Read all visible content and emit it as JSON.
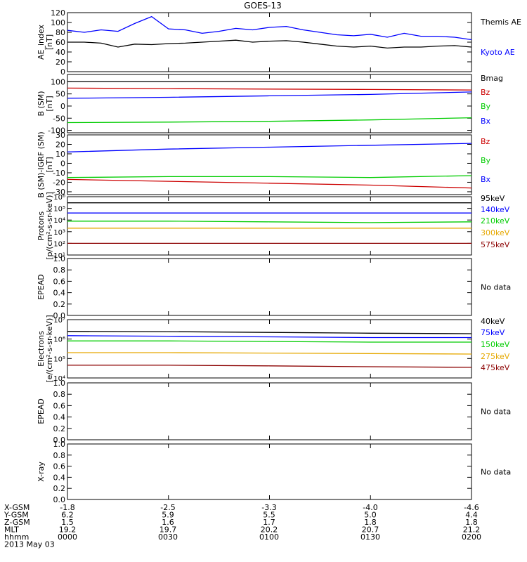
{
  "header": {
    "title": "GOES-13"
  },
  "colors": {
    "blue": "#0000ff",
    "black": "#000000",
    "green": "#00cc00",
    "red": "#cc0000",
    "orange": "#e6a800",
    "darkred": "#8b0000"
  },
  "footer": {
    "rows": [
      {
        "label": "X-GSM",
        "values": [
          "-1.8",
          "-2.5",
          "-3.3",
          "-4.0",
          "-4.6"
        ]
      },
      {
        "label": "Y-GSM",
        "values": [
          "6.2",
          "5.9",
          "5.5",
          "5.0",
          "4.4"
        ]
      },
      {
        "label": "Z-GSM",
        "values": [
          "1.5",
          "1.6",
          "1.7",
          "1.8",
          "1.8"
        ]
      },
      {
        "label": "MLT",
        "values": [
          "19.2",
          "19.7",
          "20.2",
          "20.7",
          "21.2"
        ]
      },
      {
        "label": "hhmm",
        "values": [
          "0000",
          "0030",
          "0100",
          "0130",
          "0200"
        ]
      }
    ],
    "date": "2013 May 03"
  },
  "chart_data": [
    {
      "type": "line",
      "title": "GOES-13",
      "ylabel": "AE_index [nT]",
      "ylim": [
        0,
        120
      ],
      "yticks": [
        0,
        20,
        40,
        60,
        80,
        100,
        120
      ],
      "x": [
        0,
        5,
        10,
        15,
        20,
        25,
        30,
        35,
        40,
        45,
        50,
        55,
        60,
        65,
        70,
        75,
        80,
        85,
        90,
        95,
        100,
        105,
        110,
        115,
        120
      ],
      "series": [
        {
          "name": "Kyoto AE",
          "color": "#0000ff",
          "values": [
            84,
            80,
            85,
            82,
            98,
            112,
            87,
            85,
            78,
            82,
            88,
            85,
            90,
            92,
            85,
            80,
            75,
            73,
            76,
            70,
            78,
            72,
            72,
            70,
            65
          ]
        },
        {
          "name": "Themis AE",
          "color": "#000000",
          "values": [
            60,
            60,
            58,
            50,
            56,
            55,
            57,
            58,
            60,
            62,
            64,
            60,
            62,
            63,
            60,
            56,
            52,
            50,
            52,
            48,
            50,
            50,
            52,
            53,
            50
          ]
        }
      ]
    },
    {
      "type": "line",
      "ylabel": "B (SM) [nT]",
      "ylim": [
        -110,
        130
      ],
      "yticks": [
        -100,
        -50,
        0,
        50,
        100
      ],
      "x": [
        0,
        30,
        60,
        90,
        120
      ],
      "series": [
        {
          "name": "Bx",
          "color": "#0000ff",
          "values": [
            32,
            36,
            42,
            48,
            58
          ]
        },
        {
          "name": "By",
          "color": "#00cc00",
          "values": [
            -68,
            -66,
            -63,
            -57,
            -48
          ]
        },
        {
          "name": "Bz",
          "color": "#cc0000",
          "values": [
            74,
            72,
            70,
            68,
            66
          ]
        },
        {
          "name": "Bmag",
          "color": "#000000",
          "values": [
            100,
            100,
            101,
            100,
            100
          ]
        }
      ]
    },
    {
      "type": "line",
      "ylabel": "B (SM)-IGRF (SM) [nT]",
      "ylim": [
        -33,
        30
      ],
      "yticks": [
        -30,
        -20,
        -10,
        0,
        10,
        20,
        30
      ],
      "x": [
        0,
        30,
        60,
        90,
        120
      ],
      "series": [
        {
          "name": "Bx",
          "color": "#0000ff",
          "values": [
            12,
            15,
            17,
            19,
            21
          ]
        },
        {
          "name": "By",
          "color": "#00cc00",
          "values": [
            -15,
            -14,
            -14,
            -15,
            -13
          ]
        },
        {
          "name": "Bz",
          "color": "#cc0000",
          "values": [
            -17,
            -19,
            -21,
            -23,
            -26
          ]
        }
      ]
    },
    {
      "type": "line",
      "ylabel": "Protons [p/(cm²-s-sr-keV)]",
      "yscale": "log",
      "ylim": [
        10,
        1000000
      ],
      "ytick_labels": [
        "10¹",
        "10²",
        "10³",
        "10⁴",
        "10⁵",
        "10⁶"
      ],
      "x": [
        0,
        30,
        60,
        90,
        120
      ],
      "series": [
        {
          "name": "575keV",
          "color": "#8b0000",
          "values": [
            100,
            100,
            100,
            100,
            100
          ]
        },
        {
          "name": "300keV",
          "color": "#e6a800",
          "values": [
            2000,
            2000,
            2000,
            2000,
            2000
          ]
        },
        {
          "name": "210keV",
          "color": "#00cc00",
          "values": [
            8000,
            8000,
            7000,
            6000,
            7000
          ]
        },
        {
          "name": "140keV",
          "color": "#0000ff",
          "values": [
            40000,
            40000,
            40000,
            40000,
            40000
          ]
        },
        {
          "name": "95keV",
          "color": "#000000",
          "values": [
            300000,
            300000,
            300000,
            300000,
            300000
          ]
        }
      ]
    },
    {
      "type": "line",
      "ylabel": "EPEAD",
      "ylim": [
        0,
        1
      ],
      "ytick_labels": [
        "0.0",
        "0.2",
        "0.4",
        "0.6",
        "0.8",
        "1.0"
      ],
      "series": [],
      "annotation": "No data"
    },
    {
      "type": "line",
      "ylabel": "Electrons [e/(cm²-s-sr-keV)]",
      "yscale": "log",
      "ylim": [
        10000,
        10000000
      ],
      "ytick_labels": [
        "10⁴",
        "10⁵",
        "10⁶",
        "10⁷"
      ],
      "x": [
        0,
        30,
        60,
        90,
        120
      ],
      "series": [
        {
          "name": "475keV",
          "color": "#8b0000",
          "values": [
            45000,
            45000,
            42000,
            38000,
            35000
          ]
        },
        {
          "name": "275keV",
          "color": "#e6a800",
          "values": [
            200000,
            200000,
            190000,
            180000,
            170000
          ]
        },
        {
          "name": "150keV",
          "color": "#00cc00",
          "values": [
            800000,
            800000,
            750000,
            700000,
            700000
          ]
        },
        {
          "name": "75keV",
          "color": "#0000ff",
          "values": [
            1500000,
            1400000,
            1300000,
            1200000,
            1200000
          ]
        },
        {
          "name": "40keV",
          "color": "#000000",
          "values": [
            2500000,
            2400000,
            2200000,
            2000000,
            1900000
          ]
        }
      ]
    },
    {
      "type": "line",
      "ylabel": "EPEAD",
      "ylim": [
        0,
        1
      ],
      "ytick_labels": [
        "0.0",
        "0.2",
        "0.4",
        "0.6",
        "0.8",
        "1.0"
      ],
      "series": [],
      "annotation": "No data"
    },
    {
      "type": "line",
      "ylabel": "X-ray",
      "ylim": [
        0,
        1
      ],
      "ytick_labels": [
        "0.0",
        "0.2",
        "0.4",
        "0.6",
        "0.8",
        "1.0"
      ],
      "series": [],
      "annotation": "No data"
    }
  ]
}
